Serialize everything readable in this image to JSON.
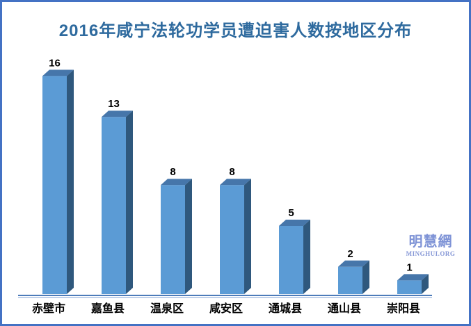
{
  "chart_data": {
    "type": "bar",
    "style": "3d-column",
    "title": "2016年咸宁法轮功学员遭迫害人数按地区分布",
    "categories": [
      "赤壁市",
      "嘉鱼县",
      "温泉区",
      "咸安区",
      "通城县",
      "通山县",
      "崇阳县"
    ],
    "values": [
      16,
      13,
      8,
      8,
      5,
      2,
      1
    ],
    "xlabel": "",
    "ylabel": "",
    "ylim": [
      0,
      16
    ],
    "grid": false,
    "legend": false,
    "value_labels": true,
    "colors": {
      "bar_front": "#5b9bd5",
      "bar_top": "#4676aa",
      "bar_side": "#2f587d",
      "axis_line": "#4d7cba",
      "axis_line_light": "#aac1e3",
      "label_text": "#000000",
      "title_text": "#2e6a9e",
      "page_border": "#4472c4"
    }
  },
  "watermark": {
    "cjk": "明慧網",
    "latin": "MINGHUI.ORG"
  }
}
